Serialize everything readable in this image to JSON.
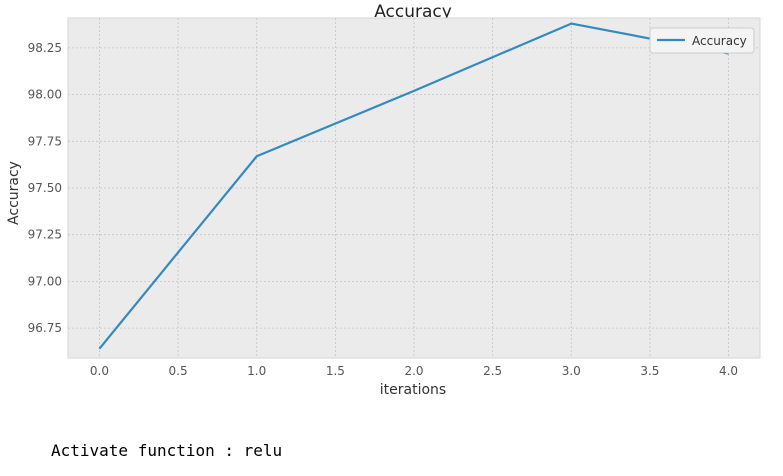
{
  "chart_data": {
    "type": "line",
    "title": "Accuracy",
    "xlabel": "iterations",
    "ylabel": "Accuracy",
    "x": [
      0,
      1,
      2,
      3,
      4
    ],
    "series": [
      {
        "name": "Accuracy",
        "values": [
          96.64,
          97.67,
          98.02,
          98.38,
          98.22
        ],
        "color": "#348abd"
      }
    ],
    "xlim": [
      -0.2,
      4.2
    ],
    "ylim": [
      96.59,
      98.41
    ],
    "xticks": [
      "0.0",
      "0.5",
      "1.0",
      "1.5",
      "2.0",
      "2.5",
      "3.0",
      "3.5",
      "4.0"
    ],
    "yticks": [
      "96.75",
      "97.00",
      "97.25",
      "97.50",
      "97.75",
      "98.00",
      "98.25"
    ],
    "grid": true,
    "legend": "top-right",
    "background": "#ebebeb"
  },
  "caption": "Activate function : relu"
}
